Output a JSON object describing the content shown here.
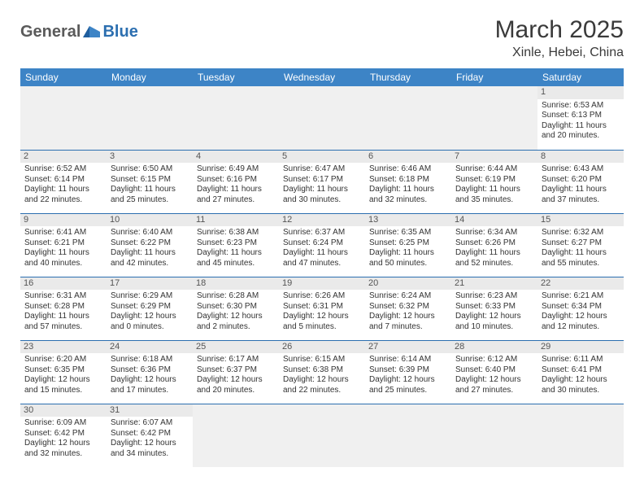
{
  "logo": {
    "general": "General",
    "blue": "Blue"
  },
  "title": "March 2025",
  "location": "Xinle, Hebei, China",
  "colors": {
    "header_bg": "#3d84c6",
    "header_text": "#ffffff",
    "border": "#2c6fb0",
    "daynum_bg": "#eaeaea",
    "logo_gray": "#5a5a5a",
    "logo_blue": "#2c6fb0"
  },
  "weekdays": [
    "Sunday",
    "Monday",
    "Tuesday",
    "Wednesday",
    "Thursday",
    "Friday",
    "Saturday"
  ],
  "weeks": [
    [
      null,
      null,
      null,
      null,
      null,
      null,
      {
        "n": "1",
        "sr": "Sunrise: 6:53 AM",
        "ss": "Sunset: 6:13 PM",
        "dl": "Daylight: 11 hours and 20 minutes."
      }
    ],
    [
      {
        "n": "2",
        "sr": "Sunrise: 6:52 AM",
        "ss": "Sunset: 6:14 PM",
        "dl": "Daylight: 11 hours and 22 minutes."
      },
      {
        "n": "3",
        "sr": "Sunrise: 6:50 AM",
        "ss": "Sunset: 6:15 PM",
        "dl": "Daylight: 11 hours and 25 minutes."
      },
      {
        "n": "4",
        "sr": "Sunrise: 6:49 AM",
        "ss": "Sunset: 6:16 PM",
        "dl": "Daylight: 11 hours and 27 minutes."
      },
      {
        "n": "5",
        "sr": "Sunrise: 6:47 AM",
        "ss": "Sunset: 6:17 PM",
        "dl": "Daylight: 11 hours and 30 minutes."
      },
      {
        "n": "6",
        "sr": "Sunrise: 6:46 AM",
        "ss": "Sunset: 6:18 PM",
        "dl": "Daylight: 11 hours and 32 minutes."
      },
      {
        "n": "7",
        "sr": "Sunrise: 6:44 AM",
        "ss": "Sunset: 6:19 PM",
        "dl": "Daylight: 11 hours and 35 minutes."
      },
      {
        "n": "8",
        "sr": "Sunrise: 6:43 AM",
        "ss": "Sunset: 6:20 PM",
        "dl": "Daylight: 11 hours and 37 minutes."
      }
    ],
    [
      {
        "n": "9",
        "sr": "Sunrise: 6:41 AM",
        "ss": "Sunset: 6:21 PM",
        "dl": "Daylight: 11 hours and 40 minutes."
      },
      {
        "n": "10",
        "sr": "Sunrise: 6:40 AM",
        "ss": "Sunset: 6:22 PM",
        "dl": "Daylight: 11 hours and 42 minutes."
      },
      {
        "n": "11",
        "sr": "Sunrise: 6:38 AM",
        "ss": "Sunset: 6:23 PM",
        "dl": "Daylight: 11 hours and 45 minutes."
      },
      {
        "n": "12",
        "sr": "Sunrise: 6:37 AM",
        "ss": "Sunset: 6:24 PM",
        "dl": "Daylight: 11 hours and 47 minutes."
      },
      {
        "n": "13",
        "sr": "Sunrise: 6:35 AM",
        "ss": "Sunset: 6:25 PM",
        "dl": "Daylight: 11 hours and 50 minutes."
      },
      {
        "n": "14",
        "sr": "Sunrise: 6:34 AM",
        "ss": "Sunset: 6:26 PM",
        "dl": "Daylight: 11 hours and 52 minutes."
      },
      {
        "n": "15",
        "sr": "Sunrise: 6:32 AM",
        "ss": "Sunset: 6:27 PM",
        "dl": "Daylight: 11 hours and 55 minutes."
      }
    ],
    [
      {
        "n": "16",
        "sr": "Sunrise: 6:31 AM",
        "ss": "Sunset: 6:28 PM",
        "dl": "Daylight: 11 hours and 57 minutes."
      },
      {
        "n": "17",
        "sr": "Sunrise: 6:29 AM",
        "ss": "Sunset: 6:29 PM",
        "dl": "Daylight: 12 hours and 0 minutes."
      },
      {
        "n": "18",
        "sr": "Sunrise: 6:28 AM",
        "ss": "Sunset: 6:30 PM",
        "dl": "Daylight: 12 hours and 2 minutes."
      },
      {
        "n": "19",
        "sr": "Sunrise: 6:26 AM",
        "ss": "Sunset: 6:31 PM",
        "dl": "Daylight: 12 hours and 5 minutes."
      },
      {
        "n": "20",
        "sr": "Sunrise: 6:24 AM",
        "ss": "Sunset: 6:32 PM",
        "dl": "Daylight: 12 hours and 7 minutes."
      },
      {
        "n": "21",
        "sr": "Sunrise: 6:23 AM",
        "ss": "Sunset: 6:33 PM",
        "dl": "Daylight: 12 hours and 10 minutes."
      },
      {
        "n": "22",
        "sr": "Sunrise: 6:21 AM",
        "ss": "Sunset: 6:34 PM",
        "dl": "Daylight: 12 hours and 12 minutes."
      }
    ],
    [
      {
        "n": "23",
        "sr": "Sunrise: 6:20 AM",
        "ss": "Sunset: 6:35 PM",
        "dl": "Daylight: 12 hours and 15 minutes."
      },
      {
        "n": "24",
        "sr": "Sunrise: 6:18 AM",
        "ss": "Sunset: 6:36 PM",
        "dl": "Daylight: 12 hours and 17 minutes."
      },
      {
        "n": "25",
        "sr": "Sunrise: 6:17 AM",
        "ss": "Sunset: 6:37 PM",
        "dl": "Daylight: 12 hours and 20 minutes."
      },
      {
        "n": "26",
        "sr": "Sunrise: 6:15 AM",
        "ss": "Sunset: 6:38 PM",
        "dl": "Daylight: 12 hours and 22 minutes."
      },
      {
        "n": "27",
        "sr": "Sunrise: 6:14 AM",
        "ss": "Sunset: 6:39 PM",
        "dl": "Daylight: 12 hours and 25 minutes."
      },
      {
        "n": "28",
        "sr": "Sunrise: 6:12 AM",
        "ss": "Sunset: 6:40 PM",
        "dl": "Daylight: 12 hours and 27 minutes."
      },
      {
        "n": "29",
        "sr": "Sunrise: 6:11 AM",
        "ss": "Sunset: 6:41 PM",
        "dl": "Daylight: 12 hours and 30 minutes."
      }
    ],
    [
      {
        "n": "30",
        "sr": "Sunrise: 6:09 AM",
        "ss": "Sunset: 6:42 PM",
        "dl": "Daylight: 12 hours and 32 minutes."
      },
      {
        "n": "31",
        "sr": "Sunrise: 6:07 AM",
        "ss": "Sunset: 6:42 PM",
        "dl": "Daylight: 12 hours and 34 minutes."
      },
      null,
      null,
      null,
      null,
      null
    ]
  ]
}
